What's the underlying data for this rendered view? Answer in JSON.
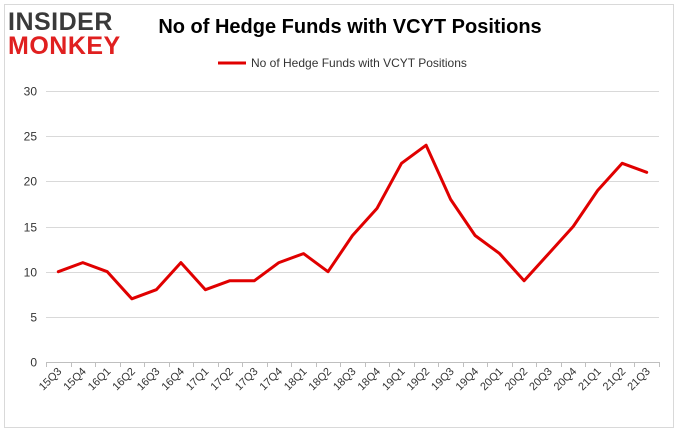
{
  "logo": {
    "line1": "INSIDER",
    "line2": "MONKEY"
  },
  "chart_data": {
    "type": "line",
    "title": "No of Hedge Funds with VCYT Positions",
    "xlabel": "",
    "ylabel": "",
    "categories": [
      "15Q3",
      "15Q4",
      "16Q1",
      "16Q2",
      "16Q3",
      "16Q4",
      "17Q1",
      "17Q2",
      "17Q3",
      "17Q4",
      "18Q1",
      "18Q2",
      "18Q3",
      "18Q4",
      "19Q1",
      "19Q2",
      "19Q3",
      "19Q4",
      "20Q1",
      "20Q2",
      "20Q3",
      "20Q4",
      "21Q1",
      "21Q2",
      "21Q3"
    ],
    "series": [
      {
        "name": "No of Hedge Funds with VCYT Positions",
        "color": "#e00000",
        "values": [
          10,
          11,
          10,
          7,
          8,
          11,
          8,
          9,
          9,
          11,
          12,
          10,
          14,
          17,
          22,
          24,
          18,
          14,
          12,
          9,
          12,
          15,
          19,
          22,
          21
        ]
      }
    ],
    "ylim": [
      0,
      30
    ],
    "yticks": [
      0,
      5,
      10,
      15,
      20,
      25,
      30
    ],
    "grid": true,
    "legend": "top-center"
  }
}
